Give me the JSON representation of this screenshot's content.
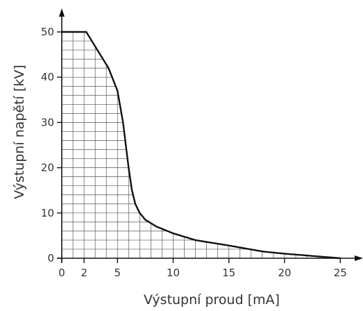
{
  "chart_data": {
    "type": "line",
    "xlabel": "Výstupní proud [mA]",
    "ylabel": "Výstupní napětí [kV]",
    "xlim": [
      0,
      26
    ],
    "ylim": [
      0,
      50
    ],
    "x_ticks": [
      0,
      2,
      5,
      10,
      15,
      20,
      25
    ],
    "x_tick_labels": [
      "0",
      "2",
      "5",
      "10",
      "15",
      "20",
      "25"
    ],
    "y_ticks": [
      0,
      10,
      20,
      30,
      40,
      50
    ],
    "y_tick_labels": [
      "0",
      "10",
      "20",
      "30",
      "40",
      "50"
    ],
    "grid": true,
    "grid_x_step": 1,
    "grid_y_step": 2,
    "grid_x_max": 25,
    "grid_y_max": 50,
    "grid_region": "under-curve",
    "x": [
      0,
      2.2,
      3.2,
      4.2,
      5.0,
      5.5,
      6.0,
      6.3,
      6.6,
      7.0,
      7.5,
      8.5,
      10,
      12,
      15,
      18,
      20,
      22,
      24,
      25
    ],
    "y": [
      50,
      50,
      46,
      42,
      37,
      30,
      20,
      15,
      12,
      10,
      8.5,
      7,
      5.5,
      4,
      2.8,
      1.5,
      1.0,
      0.6,
      0.2,
      0
    ]
  }
}
